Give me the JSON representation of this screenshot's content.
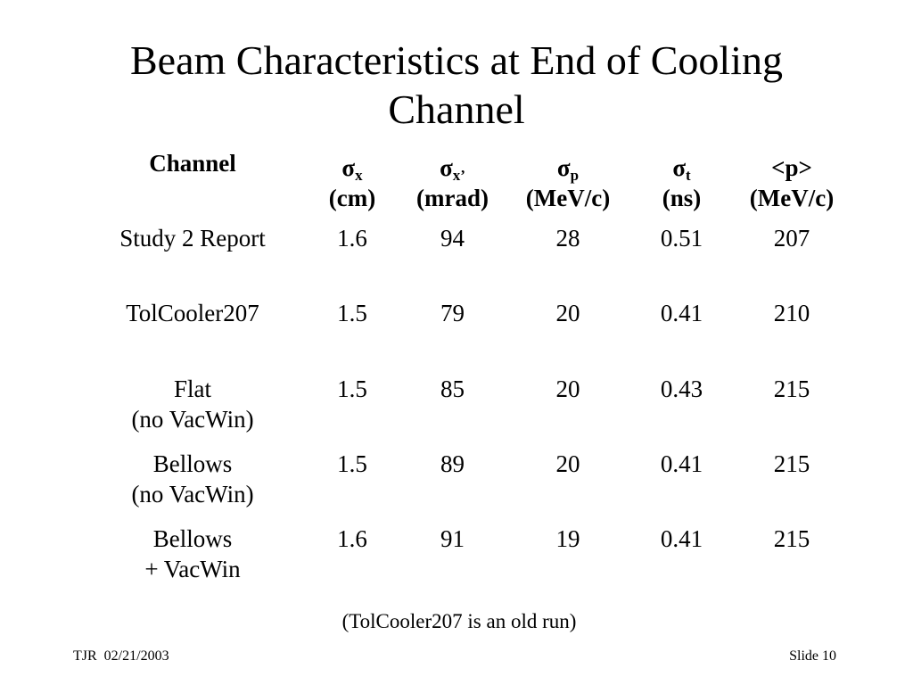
{
  "slide": {
    "title_line1": "Beam Characteristics at End of Cooling",
    "title_line2": "Channel",
    "note": "(TolCooler207 is an old run)",
    "footer_left": "TJR  02/21/2003",
    "footer_right": "Slide 10"
  },
  "table": {
    "headers": [
      {
        "line1": "Channel",
        "line2": ""
      },
      {
        "symbol": "σ",
        "sub": "x",
        "line2": "(cm)"
      },
      {
        "symbol": "σ",
        "sub": "x’",
        "line2": "(mrad)"
      },
      {
        "symbol": "σ",
        "sub": "p",
        "line2": "(MeV/c)"
      },
      {
        "symbol": "σ",
        "sub": "t",
        "line2": "(ns)"
      },
      {
        "line1": "<p>",
        "line2": "(MeV/c)"
      }
    ],
    "rows": [
      {
        "channel_line1": "Study 2 Report",
        "channel_line2": "",
        "sx": "1.6",
        "sxp": "94",
        "sp": "28",
        "st": "0.51",
        "p": "207"
      },
      {
        "channel_line1": "TolCooler207",
        "channel_line2": "",
        "sx": "1.5",
        "sxp": "79",
        "sp": "20",
        "st": "0.41",
        "p": "210"
      },
      {
        "channel_line1": "Flat",
        "channel_line2": "(no VacWin)",
        "sx": "1.5",
        "sxp": "85",
        "sp": "20",
        "st": "0.43",
        "p": "215"
      },
      {
        "channel_line1": "Bellows",
        "channel_line2": "(no VacWin)",
        "sx": "1.5",
        "sxp": "89",
        "sp": "20",
        "st": "0.41",
        "p": "215"
      },
      {
        "channel_line1": "Bellows",
        "channel_line2": "+ VacWin",
        "sx": "1.6",
        "sxp": "91",
        "sp": "19",
        "st": "0.41",
        "p": "215"
      }
    ]
  }
}
